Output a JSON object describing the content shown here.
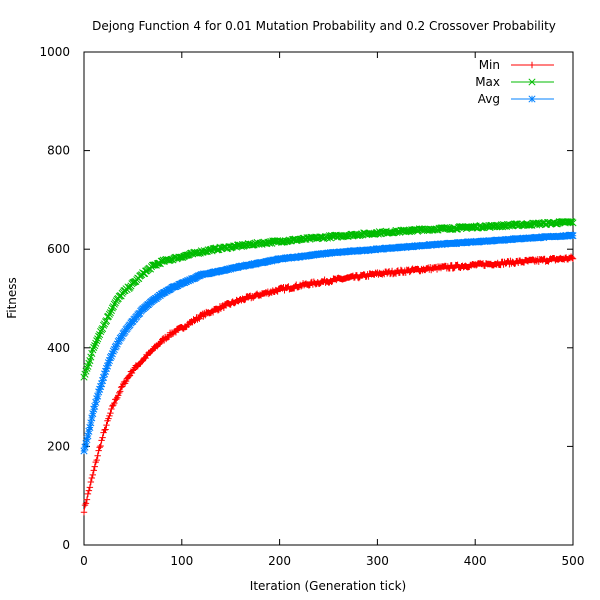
{
  "chart_data": {
    "type": "line",
    "title": "Dejong Function 4 for 0.01 Mutation Probability and 0.2 Crossover Probability",
    "xlabel": "Iteration (Generation tick)",
    "ylabel": "Fitness",
    "xlim": [
      0,
      500
    ],
    "ylim": [
      0,
      1000
    ],
    "xticks": [
      0,
      100,
      200,
      300,
      400,
      500
    ],
    "yticks": [
      0,
      200,
      400,
      600,
      800,
      1000
    ],
    "grid": false,
    "legend_position": "top-right",
    "series": [
      {
        "name": "Min",
        "color": "#ff0000",
        "marker": "plus",
        "points": [
          [
            0,
            70
          ],
          [
            5,
            110
          ],
          [
            10,
            150
          ],
          [
            15,
            190
          ],
          [
            20,
            225
          ],
          [
            25,
            255
          ],
          [
            30,
            285
          ],
          [
            35,
            305
          ],
          [
            40,
            325
          ],
          [
            45,
            340
          ],
          [
            50,
            355
          ],
          [
            60,
            375
          ],
          [
            70,
            395
          ],
          [
            80,
            415
          ],
          [
            90,
            430
          ],
          [
            100,
            440
          ],
          [
            120,
            465
          ],
          [
            140,
            482
          ],
          [
            160,
            497
          ],
          [
            180,
            508
          ],
          [
            200,
            518
          ],
          [
            220,
            526
          ],
          [
            250,
            536
          ],
          [
            280,
            544
          ],
          [
            300,
            550
          ],
          [
            350,
            560
          ],
          [
            400,
            568
          ],
          [
            450,
            575
          ],
          [
            500,
            582
          ]
        ]
      },
      {
        "name": "Max",
        "color": "#00bb00",
        "marker": "cross",
        "points": [
          [
            0,
            340
          ],
          [
            5,
            370
          ],
          [
            10,
            400
          ],
          [
            15,
            425
          ],
          [
            20,
            445
          ],
          [
            25,
            465
          ],
          [
            30,
            485
          ],
          [
            35,
            500
          ],
          [
            40,
            512
          ],
          [
            50,
            530
          ],
          [
            60,
            550
          ],
          [
            70,
            565
          ],
          [
            80,
            575
          ],
          [
            90,
            580
          ],
          [
            100,
            585
          ],
          [
            120,
            595
          ],
          [
            140,
            602
          ],
          [
            160,
            607
          ],
          [
            180,
            612
          ],
          [
            200,
            616
          ],
          [
            250,
            625
          ],
          [
            300,
            633
          ],
          [
            350,
            640
          ],
          [
            400,
            645
          ],
          [
            450,
            650
          ],
          [
            500,
            655
          ]
        ]
      },
      {
        "name": "Avg",
        "color": "#0080ff",
        "marker": "star",
        "points": [
          [
            0,
            190
          ],
          [
            5,
            230
          ],
          [
            10,
            275
          ],
          [
            15,
            310
          ],
          [
            20,
            340
          ],
          [
            25,
            370
          ],
          [
            30,
            393
          ],
          [
            35,
            412
          ],
          [
            40,
            428
          ],
          [
            50,
            455
          ],
          [
            60,
            478
          ],
          [
            70,
            495
          ],
          [
            80,
            510
          ],
          [
            90,
            522
          ],
          [
            100,
            530
          ],
          [
            120,
            548
          ],
          [
            140,
            556
          ],
          [
            160,
            565
          ],
          [
            180,
            572
          ],
          [
            200,
            580
          ],
          [
            250,
            592
          ],
          [
            300,
            600
          ],
          [
            350,
            608
          ],
          [
            400,
            615
          ],
          [
            450,
            622
          ],
          [
            500,
            628
          ]
        ]
      }
    ]
  }
}
